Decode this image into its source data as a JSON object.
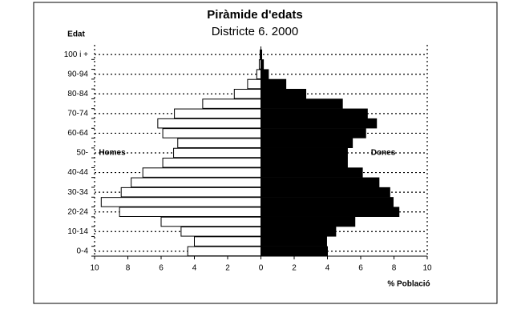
{
  "chart_data": {
    "type": "pyramid",
    "title": "Piràmide d'edats",
    "subtitle": "Districte 6. 2000",
    "y_axis_label": "Edat",
    "x_axis_label": "% Població",
    "categories": [
      "0-4",
      null,
      "10-14",
      null,
      "20-24",
      null,
      "30-34",
      null,
      "40-44",
      null,
      "50-",
      null,
      "60-64",
      null,
      "70-74",
      null,
      "80-84",
      null,
      "90-94",
      null,
      "100 i +"
    ],
    "series": [
      {
        "name": "Homes",
        "color": "#ffffff",
        "values": [
          -4.4,
          -4.0,
          -4.8,
          -6.0,
          -8.5,
          -9.6,
          -8.4,
          -7.8,
          -7.1,
          -5.9,
          -5.25,
          -5.0,
          -5.9,
          -6.2,
          -5.2,
          -3.5,
          -1.6,
          -0.8,
          -0.25,
          -0.1,
          -0.05
        ]
      },
      {
        "name": "Dones",
        "color": "#000000",
        "values": [
          4.0,
          3.95,
          4.5,
          5.65,
          8.3,
          7.95,
          7.75,
          7.1,
          6.1,
          5.2,
          5.2,
          5.5,
          6.3,
          6.95,
          6.4,
          4.9,
          2.7,
          1.5,
          0.45,
          0.15,
          0.05
        ]
      }
    ],
    "xlim": [
      -10,
      10
    ],
    "xticks": [
      {
        "value": -10,
        "label": "10"
      },
      {
        "value": -8,
        "label": "8"
      },
      {
        "value": -6,
        "label": "6"
      },
      {
        "value": -4,
        "label": "4"
      },
      {
        "value": -2,
        "label": "2"
      },
      0,
      2,
      4,
      6,
      8,
      10
    ],
    "grid": true
  }
}
